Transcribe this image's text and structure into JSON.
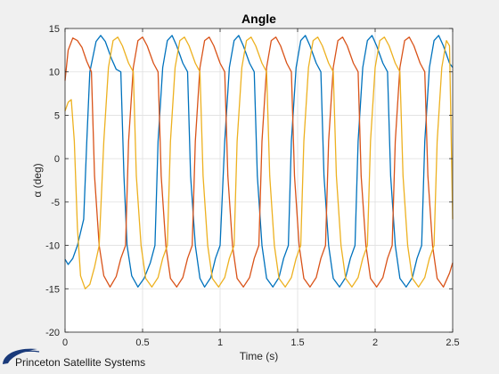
{
  "chart_data": {
    "type": "line",
    "title": "Angle",
    "xlabel": "Time (s)",
    "ylabel": "α (deg)",
    "xlim": [
      0,
      2.5
    ],
    "ylim": [
      -20,
      15
    ],
    "grid": true,
    "legend": "none",
    "x_ticks": [
      "0",
      "0.5",
      "1",
      "1.5",
      "2",
      "2.5"
    ],
    "y_ticks": [
      "-20",
      "-15",
      "-10",
      "-5",
      "0",
      "5",
      "10",
      "15"
    ],
    "series": [
      {
        "color": "#0072BD",
        "points": [
          [
            0.0,
            -11.6
          ],
          [
            0.02,
            -12.2
          ],
          [
            0.05,
            -11.5
          ],
          [
            0.08,
            -10.0
          ],
          [
            0.12,
            -7.0
          ],
          [
            0.14,
            2.0
          ],
          [
            0.16,
            10.0
          ],
          [
            0.2,
            13.5
          ],
          [
            0.23,
            14.2
          ],
          [
            0.26,
            13.5
          ],
          [
            0.3,
            11.5
          ],
          [
            0.33,
            10.3
          ],
          [
            0.36,
            10.0
          ],
          [
            0.38,
            -2.0
          ],
          [
            0.4,
            -10.0
          ],
          [
            0.43,
            -13.5
          ],
          [
            0.47,
            -14.8
          ],
          [
            0.51,
            -13.8
          ],
          [
            0.55,
            -12.0
          ],
          [
            0.58,
            -10.0
          ],
          [
            0.6,
            2.0
          ],
          [
            0.63,
            10.5
          ],
          [
            0.66,
            13.6
          ],
          [
            0.69,
            14.2
          ],
          [
            0.72,
            13.0
          ],
          [
            0.76,
            11.0
          ],
          [
            0.79,
            10.0
          ],
          [
            0.81,
            -2.0
          ],
          [
            0.84,
            -10.0
          ],
          [
            0.87,
            -13.8
          ],
          [
            0.9,
            -14.8
          ],
          [
            0.94,
            -13.7
          ],
          [
            0.97,
            -11.5
          ],
          [
            1.0,
            -10.0
          ],
          [
            1.03,
            2.0
          ],
          [
            1.06,
            10.5
          ],
          [
            1.09,
            13.6
          ],
          [
            1.12,
            14.2
          ],
          [
            1.15,
            13.0
          ],
          [
            1.19,
            11.0
          ],
          [
            1.22,
            10.0
          ],
          [
            1.24,
            -2.0
          ],
          [
            1.27,
            -10.0
          ],
          [
            1.3,
            -13.8
          ],
          [
            1.34,
            -14.8
          ],
          [
            1.38,
            -13.7
          ],
          [
            1.41,
            -11.5
          ],
          [
            1.44,
            -10.0
          ],
          [
            1.46,
            2.0
          ],
          [
            1.49,
            10.5
          ],
          [
            1.52,
            13.6
          ],
          [
            1.55,
            14.2
          ],
          [
            1.58,
            13.0
          ],
          [
            1.62,
            11.0
          ],
          [
            1.65,
            10.0
          ],
          [
            1.67,
            -2.0
          ],
          [
            1.7,
            -10.0
          ],
          [
            1.73,
            -13.8
          ],
          [
            1.77,
            -14.8
          ],
          [
            1.81,
            -13.7
          ],
          [
            1.84,
            -11.5
          ],
          [
            1.87,
            -10.0
          ],
          [
            1.89,
            2.0
          ],
          [
            1.92,
            10.5
          ],
          [
            1.95,
            13.6
          ],
          [
            1.98,
            14.2
          ],
          [
            2.01,
            13.0
          ],
          [
            2.05,
            11.0
          ],
          [
            2.08,
            10.0
          ],
          [
            2.1,
            -2.0
          ],
          [
            2.13,
            -10.0
          ],
          [
            2.16,
            -13.8
          ],
          [
            2.2,
            -14.8
          ],
          [
            2.24,
            -13.7
          ],
          [
            2.27,
            -11.5
          ],
          [
            2.3,
            -10.0
          ],
          [
            2.32,
            2.0
          ],
          [
            2.35,
            10.5
          ],
          [
            2.38,
            13.6
          ],
          [
            2.41,
            14.2
          ],
          [
            2.44,
            13.0
          ],
          [
            2.48,
            11.0
          ],
          [
            2.5,
            10.5
          ]
        ]
      },
      {
        "color": "#D95319",
        "points": [
          [
            0.0,
            9.0
          ],
          [
            0.02,
            12.5
          ],
          [
            0.05,
            13.9
          ],
          [
            0.08,
            13.6
          ],
          [
            0.11,
            12.8
          ],
          [
            0.14,
            11.2
          ],
          [
            0.17,
            10.0
          ],
          [
            0.19,
            -2.0
          ],
          [
            0.22,
            -10.0
          ],
          [
            0.25,
            -13.5
          ],
          [
            0.29,
            -14.8
          ],
          [
            0.33,
            -13.6
          ],
          [
            0.36,
            -11.5
          ],
          [
            0.39,
            -10.0
          ],
          [
            0.41,
            2.0
          ],
          [
            0.44,
            10.5
          ],
          [
            0.47,
            13.6
          ],
          [
            0.5,
            14.0
          ],
          [
            0.53,
            13.0
          ],
          [
            0.57,
            11.0
          ],
          [
            0.6,
            10.0
          ],
          [
            0.62,
            -2.0
          ],
          [
            0.65,
            -10.0
          ],
          [
            0.68,
            -13.8
          ],
          [
            0.72,
            -14.8
          ],
          [
            0.76,
            -13.7
          ],
          [
            0.79,
            -11.5
          ],
          [
            0.82,
            -10.0
          ],
          [
            0.84,
            2.0
          ],
          [
            0.87,
            10.5
          ],
          [
            0.9,
            13.6
          ],
          [
            0.93,
            14.0
          ],
          [
            0.96,
            13.0
          ],
          [
            1.0,
            11.0
          ],
          [
            1.03,
            10.0
          ],
          [
            1.05,
            -2.0
          ],
          [
            1.08,
            -10.0
          ],
          [
            1.11,
            -13.8
          ],
          [
            1.15,
            -14.8
          ],
          [
            1.19,
            -13.7
          ],
          [
            1.22,
            -11.5
          ],
          [
            1.25,
            -10.0
          ],
          [
            1.27,
            2.0
          ],
          [
            1.3,
            10.5
          ],
          [
            1.33,
            13.6
          ],
          [
            1.36,
            14.0
          ],
          [
            1.39,
            13.0
          ],
          [
            1.43,
            11.0
          ],
          [
            1.46,
            10.0
          ],
          [
            1.48,
            -2.0
          ],
          [
            1.51,
            -10.0
          ],
          [
            1.54,
            -13.8
          ],
          [
            1.58,
            -14.8
          ],
          [
            1.62,
            -13.7
          ],
          [
            1.65,
            -11.5
          ],
          [
            1.68,
            -10.0
          ],
          [
            1.7,
            2.0
          ],
          [
            1.73,
            10.5
          ],
          [
            1.76,
            13.6
          ],
          [
            1.79,
            14.0
          ],
          [
            1.82,
            13.0
          ],
          [
            1.86,
            11.0
          ],
          [
            1.89,
            10.0
          ],
          [
            1.91,
            -2.0
          ],
          [
            1.94,
            -10.0
          ],
          [
            1.97,
            -13.8
          ],
          [
            2.01,
            -14.8
          ],
          [
            2.05,
            -13.7
          ],
          [
            2.08,
            -11.5
          ],
          [
            2.11,
            -10.0
          ],
          [
            2.13,
            2.0
          ],
          [
            2.16,
            10.5
          ],
          [
            2.19,
            13.6
          ],
          [
            2.22,
            14.0
          ],
          [
            2.25,
            13.0
          ],
          [
            2.29,
            11.0
          ],
          [
            2.32,
            10.0
          ],
          [
            2.34,
            -2.0
          ],
          [
            2.37,
            -10.0
          ],
          [
            2.4,
            -13.8
          ],
          [
            2.44,
            -14.8
          ],
          [
            2.48,
            -13.2
          ],
          [
            2.5,
            -12.0
          ]
        ]
      },
      {
        "color": "#EDB120",
        "points": [
          [
            0.0,
            5.5
          ],
          [
            0.02,
            6.5
          ],
          [
            0.04,
            6.8
          ],
          [
            0.06,
            2.0
          ],
          [
            0.08,
            -8.0
          ],
          [
            0.1,
            -13.5
          ],
          [
            0.13,
            -15.0
          ],
          [
            0.16,
            -14.5
          ],
          [
            0.19,
            -12.5
          ],
          [
            0.22,
            -10.0
          ],
          [
            0.25,
            2.0
          ],
          [
            0.28,
            10.5
          ],
          [
            0.31,
            13.6
          ],
          [
            0.34,
            14.0
          ],
          [
            0.37,
            13.0
          ],
          [
            0.41,
            11.0
          ],
          [
            0.44,
            10.0
          ],
          [
            0.46,
            -2.0
          ],
          [
            0.49,
            -10.0
          ],
          [
            0.52,
            -13.8
          ],
          [
            0.56,
            -14.8
          ],
          [
            0.6,
            -13.7
          ],
          [
            0.63,
            -11.5
          ],
          [
            0.66,
            -10.0
          ],
          [
            0.68,
            2.0
          ],
          [
            0.71,
            10.5
          ],
          [
            0.74,
            13.6
          ],
          [
            0.77,
            14.0
          ],
          [
            0.8,
            13.0
          ],
          [
            0.84,
            11.0
          ],
          [
            0.87,
            10.0
          ],
          [
            0.89,
            -2.0
          ],
          [
            0.92,
            -10.0
          ],
          [
            0.95,
            -13.8
          ],
          [
            0.99,
            -14.8
          ],
          [
            1.03,
            -13.7
          ],
          [
            1.06,
            -11.5
          ],
          [
            1.09,
            -10.0
          ],
          [
            1.11,
            2.0
          ],
          [
            1.14,
            10.5
          ],
          [
            1.17,
            13.6
          ],
          [
            1.2,
            14.0
          ],
          [
            1.23,
            13.0
          ],
          [
            1.27,
            11.0
          ],
          [
            1.3,
            10.0
          ],
          [
            1.32,
            -2.0
          ],
          [
            1.35,
            -10.0
          ],
          [
            1.38,
            -13.8
          ],
          [
            1.42,
            -14.8
          ],
          [
            1.46,
            -13.7
          ],
          [
            1.49,
            -11.5
          ],
          [
            1.52,
            -10.0
          ],
          [
            1.54,
            2.0
          ],
          [
            1.57,
            10.5
          ],
          [
            1.6,
            13.6
          ],
          [
            1.63,
            14.0
          ],
          [
            1.66,
            13.0
          ],
          [
            1.7,
            11.0
          ],
          [
            1.73,
            10.0
          ],
          [
            1.75,
            -2.0
          ],
          [
            1.78,
            -10.0
          ],
          [
            1.81,
            -13.8
          ],
          [
            1.85,
            -14.8
          ],
          [
            1.89,
            -13.7
          ],
          [
            1.92,
            -11.5
          ],
          [
            1.95,
            -10.0
          ],
          [
            1.97,
            2.0
          ],
          [
            2.0,
            10.5
          ],
          [
            2.03,
            13.6
          ],
          [
            2.06,
            14.0
          ],
          [
            2.09,
            13.0
          ],
          [
            2.13,
            11.0
          ],
          [
            2.16,
            10.0
          ],
          [
            2.18,
            -2.0
          ],
          [
            2.21,
            -10.0
          ],
          [
            2.24,
            -13.8
          ],
          [
            2.28,
            -14.8
          ],
          [
            2.32,
            -13.7
          ],
          [
            2.35,
            -11.5
          ],
          [
            2.38,
            -10.0
          ],
          [
            2.4,
            2.0
          ],
          [
            2.43,
            10.5
          ],
          [
            2.46,
            13.6
          ],
          [
            2.48,
            13.0
          ],
          [
            2.5,
            -7.0
          ]
        ]
      }
    ]
  },
  "logo": {
    "text": "Princeton Satellite Systems",
    "color": "#1a3a7a"
  }
}
